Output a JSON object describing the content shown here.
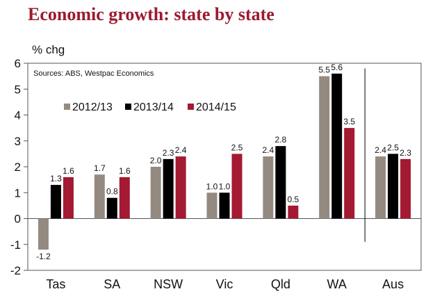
{
  "title": "Economic growth: state by state",
  "chart_data": {
    "type": "bar",
    "ylabel": "% chg",
    "source": "Sources:  ABS, Westpac Economics",
    "categories": [
      "Tas",
      "SA",
      "NSW",
      "Vic",
      "Qld",
      "WA",
      "Aus"
    ],
    "ylim": [
      -2,
      6
    ],
    "yticks": [
      -2,
      -1,
      0,
      1,
      2,
      3,
      4,
      5,
      6
    ],
    "ytick_labels": [
      "-2",
      "-1",
      "0",
      "1",
      "2",
      "3",
      "4",
      "5",
      "6"
    ],
    "legend_position": "top-left",
    "grid": false,
    "separator_before_category": "Aus",
    "series": [
      {
        "name": "2012/13",
        "color": "#958A80",
        "values": [
          -1.2,
          1.7,
          2.0,
          1.0,
          2.4,
          5.5,
          2.4
        ],
        "labels": [
          "-1.2",
          "1.7",
          "2.0",
          "1.0",
          "2.4",
          "5.5",
          "2.4"
        ]
      },
      {
        "name": "2013/14",
        "color": "#000000",
        "values": [
          1.3,
          0.8,
          2.3,
          1.0,
          2.8,
          5.6,
          2.5
        ],
        "labels": [
          "1.3",
          "0.8",
          "2.3",
          "1.0",
          "2.8",
          "5.6",
          "2.5"
        ]
      },
      {
        "name": "2014/15",
        "color": "#A31A32",
        "values": [
          1.6,
          1.6,
          2.4,
          2.5,
          0.5,
          3.5,
          2.3
        ],
        "labels": [
          "1.6",
          "1.6",
          "2.4",
          "2.5",
          "0.5",
          "3.5",
          "2.3"
        ]
      }
    ]
  }
}
